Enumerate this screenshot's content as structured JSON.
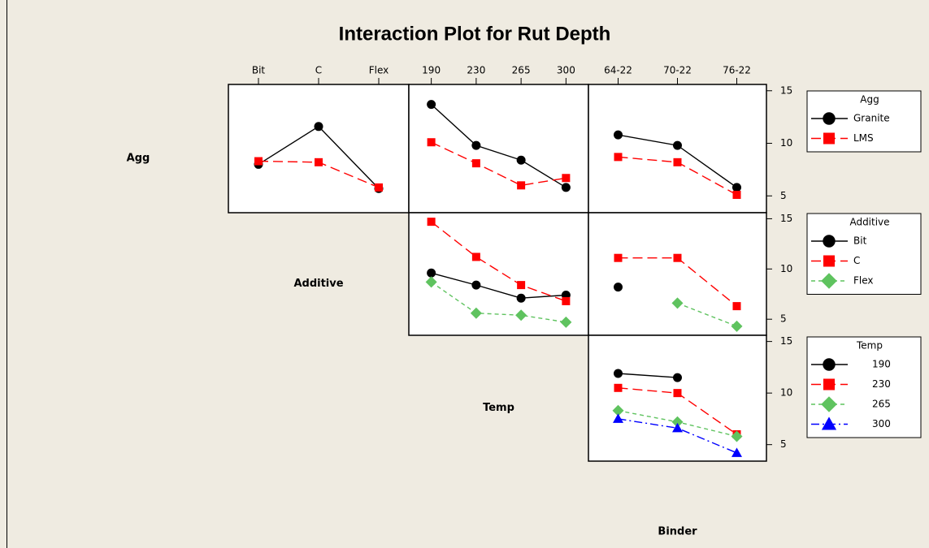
{
  "chart_data": {
    "type": "interaction",
    "title": "Interaction Plot for Rut Depth",
    "ylim": [
      3.4,
      15.6
    ],
    "yticks": [
      5,
      10,
      15
    ],
    "factors": [
      {
        "name": "Agg"
      },
      {
        "name": "Additive",
        "levels": [
          "Bit",
          "C",
          "Flex"
        ]
      },
      {
        "name": "Temp",
        "levels": [
          "190",
          "230",
          "265",
          "300"
        ]
      },
      {
        "name": "Binder",
        "levels": [
          "64-22",
          "70-22",
          "76-22"
        ]
      }
    ],
    "rows": [
      {
        "factor": 0,
        "series": [
          {
            "name": "Granite",
            "color": "#000000",
            "marker": "circle",
            "dash": "solid"
          },
          {
            "name": "LMS",
            "color": "#ff0000",
            "marker": "square",
            "dash": "long"
          }
        ],
        "panels": [
          {
            "factor": 1,
            "values": [
              [
                8.0,
                11.6,
                5.7
              ],
              [
                8.3,
                8.2,
                5.8
              ]
            ]
          },
          {
            "factor": 2,
            "values": [
              [
                13.7,
                9.8,
                8.4,
                5.8
              ],
              [
                10.1,
                8.1,
                6.0,
                6.7
              ]
            ]
          },
          {
            "factor": 3,
            "values": [
              [
                10.8,
                9.8,
                5.8
              ],
              [
                8.7,
                8.2,
                5.1
              ]
            ]
          }
        ]
      },
      {
        "factor": 1,
        "series": [
          {
            "name": "Bit",
            "color": "#000000",
            "marker": "circle",
            "dash": "solid"
          },
          {
            "name": "C",
            "color": "#ff0000",
            "marker": "square",
            "dash": "long"
          },
          {
            "name": "Flex",
            "color": "#5fc35f",
            "marker": "diamond",
            "dash": "short"
          }
        ],
        "panels": [
          {
            "factor": 2,
            "values": [
              [
                9.6,
                8.4,
                7.1,
                7.4
              ],
              [
                14.7,
                11.2,
                8.4,
                6.8
              ],
              [
                8.7,
                5.6,
                5.4,
                4.7
              ]
            ]
          },
          {
            "factor": 3,
            "values": [
              [
                8.2,
                null,
                null
              ],
              [
                11.1,
                11.1,
                6.3
              ],
              [
                null,
                6.6,
                4.3
              ]
            ]
          }
        ]
      },
      {
        "factor": 2,
        "series": [
          {
            "name": "190",
            "color": "#000000",
            "marker": "circle",
            "dash": "solid"
          },
          {
            "name": "230",
            "color": "#ff0000",
            "marker": "square",
            "dash": "long"
          },
          {
            "name": "265",
            "color": "#5fc35f",
            "marker": "diamond",
            "dash": "short"
          },
          {
            "name": "300",
            "color": "#0000ff",
            "marker": "triangle",
            "dash": "dashdot"
          }
        ],
        "panels": [
          {
            "factor": 3,
            "values": [
              [
                11.9,
                11.5,
                null
              ],
              [
                10.5,
                10.0,
                6.0
              ],
              [
                8.3,
                7.2,
                5.8
              ],
              [
                7.5,
                6.6,
                4.2
              ]
            ]
          }
        ]
      }
    ]
  }
}
